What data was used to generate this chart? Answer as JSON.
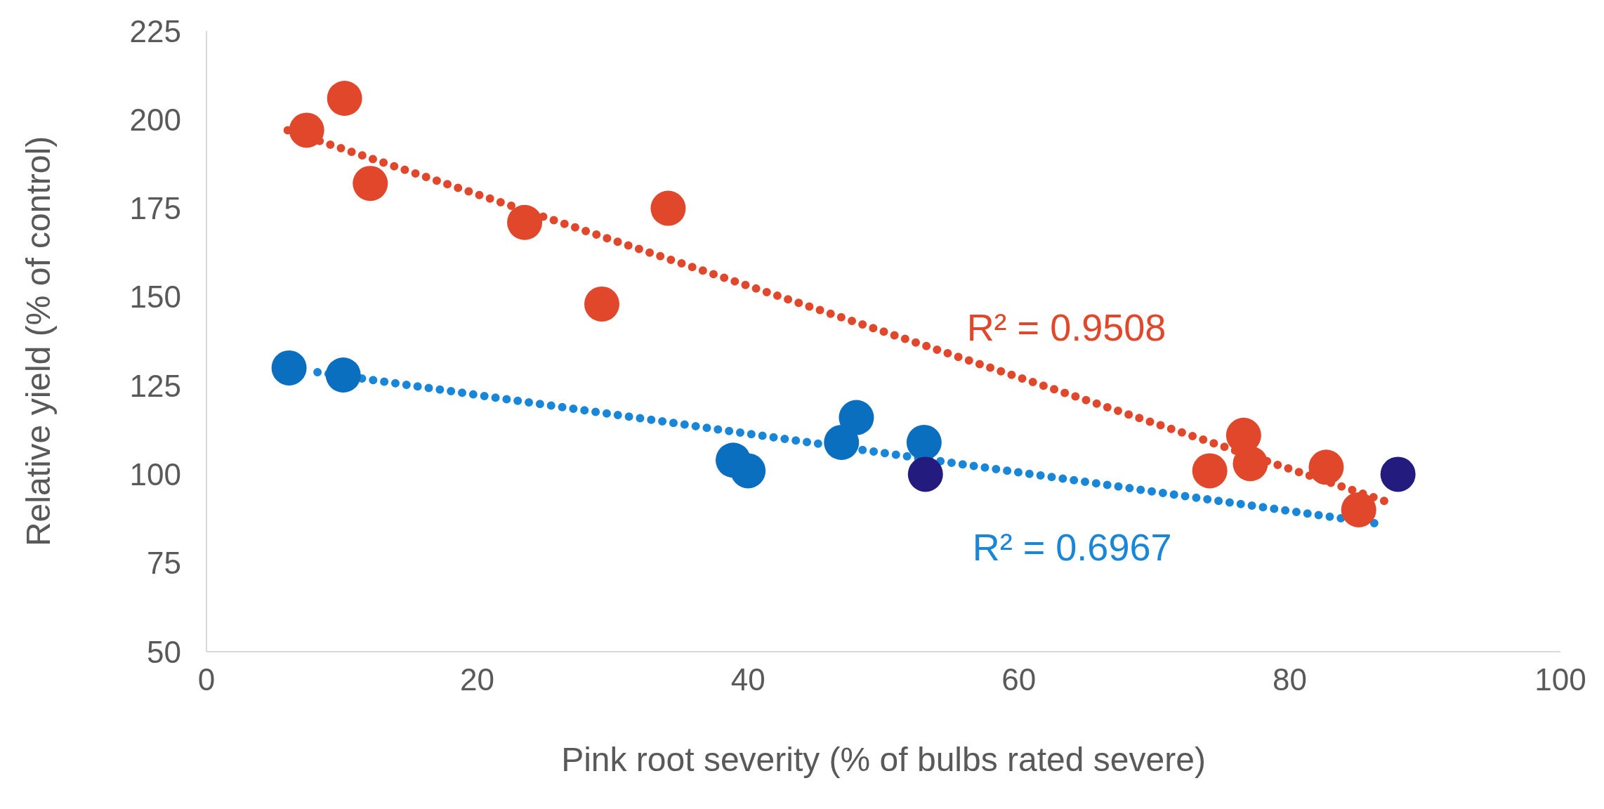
{
  "chart_data": {
    "type": "scatter",
    "xlabel": "Pink root severity (% of bulbs rated severe)",
    "ylabel": "Relative yield (% of control)",
    "xlim": [
      0,
      100
    ],
    "xticks": [
      0,
      20,
      40,
      60,
      80,
      100
    ],
    "ylim": [
      50,
      225
    ],
    "yticks": [
      50,
      75,
      100,
      125,
      150,
      175,
      200,
      225
    ],
    "grid": false,
    "marker": "circle",
    "series": [
      {
        "color": "#e0472b",
        "x": [
          7.4,
          10.2,
          12.1,
          23.5,
          29.2,
          34.1,
          74.1,
          76.6,
          77.1,
          82.7,
          85.1
        ],
        "values": [
          197,
          206,
          182,
          171,
          148,
          175,
          101,
          111,
          103,
          102,
          90
        ]
      },
      {
        "color": "#0b6fbf",
        "x": [
          6.1,
          10.1,
          38.9,
          40.0,
          46.9,
          48.0,
          53.0
        ],
        "values": [
          130,
          128,
          104,
          101,
          109,
          116,
          109
        ]
      },
      {
        "color": "#231c7e",
        "x": [
          53.1,
          88.0
        ],
        "values": [
          100,
          100
        ]
      },
      {
        "type": "line",
        "color": "#e0472b",
        "line_style": "dotted",
        "marker": "none",
        "x": [
          6.0,
          87.0
        ],
        "values": [
          197,
          92.5
        ]
      },
      {
        "type": "line",
        "color": "#1a86d8",
        "line_style": "dotted",
        "marker": "none",
        "x": [
          8.2,
          86.7
        ],
        "values": [
          128.8,
          86
        ]
      }
    ],
    "annotations": [
      "R² = 0.9508",
      "R² = 0.6967"
    ]
  }
}
